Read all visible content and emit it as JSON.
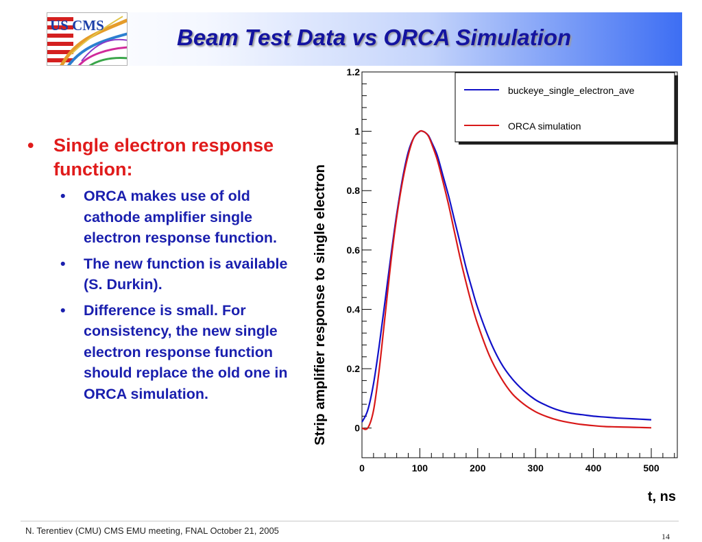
{
  "slide": {
    "title": "Beam Test Data vs ORCA Simulation",
    "logo_text": "US CMS",
    "main_bullet": "Single electron response function:",
    "sub_bullets": [
      "ORCA makes use of old cathode amplifier single electron response function.",
      "The new function is available (S. Durkin).",
      "Difference is small. For consistency, the new single electron response function should replace the old one in ORCA simulation."
    ],
    "bullet_char": "•",
    "footer": "N. Terentiev  (CMU)  CMS EMU meeting,  FNAL  October 21, 2005",
    "page_number": "14"
  },
  "chart_data": {
    "type": "line",
    "title": "",
    "xlabel": "t, ns",
    "ylabel": "Strip amplifier response to single electron",
    "xlim": [
      0,
      545
    ],
    "ylim": [
      -0.1,
      1.2
    ],
    "x_ticks": [
      "0",
      "100",
      "200",
      "300",
      "400",
      "500"
    ],
    "y_ticks": [
      "0",
      "0.2",
      "0.4",
      "0.6",
      "0.8",
      "1",
      "1.2"
    ],
    "legend_position": "top-right",
    "series": [
      {
        "name": "buckeye_single_electron_ave",
        "color": "#1010c8",
        "x": [
          0,
          10,
          20,
          30,
          40,
          50,
          60,
          70,
          80,
          90,
          100,
          105,
          110,
          115,
          120,
          130,
          140,
          150,
          160,
          170,
          180,
          190,
          200,
          220,
          240,
          260,
          280,
          300,
          320,
          340,
          360,
          380,
          400,
          420,
          440,
          460,
          480,
          500
        ],
        "y": [
          0.02,
          0.06,
          0.15,
          0.28,
          0.43,
          0.58,
          0.72,
          0.84,
          0.93,
          0.98,
          1.0,
          1.0,
          0.995,
          0.985,
          0.965,
          0.92,
          0.85,
          0.78,
          0.7,
          0.62,
          0.54,
          0.47,
          0.405,
          0.3,
          0.22,
          0.165,
          0.125,
          0.095,
          0.075,
          0.06,
          0.05,
          0.045,
          0.04,
          0.037,
          0.034,
          0.032,
          0.03,
          0.028
        ]
      },
      {
        "name": "ORCA simulation",
        "color": "#d81818",
        "x": [
          0,
          10,
          20,
          30,
          40,
          50,
          60,
          70,
          80,
          90,
          100,
          105,
          110,
          115,
          120,
          130,
          140,
          150,
          160,
          170,
          180,
          190,
          200,
          220,
          240,
          260,
          280,
          300,
          320,
          340,
          360,
          380,
          400,
          420,
          440,
          460,
          480,
          500
        ],
        "y": [
          0.0,
          0.0,
          0.06,
          0.2,
          0.38,
          0.56,
          0.71,
          0.83,
          0.92,
          0.98,
          1.0,
          1.0,
          0.995,
          0.983,
          0.96,
          0.905,
          0.83,
          0.75,
          0.66,
          0.57,
          0.49,
          0.415,
          0.35,
          0.245,
          0.17,
          0.115,
          0.08,
          0.055,
          0.038,
          0.026,
          0.018,
          0.012,
          0.008,
          0.005,
          0.004,
          0.003,
          0.002,
          0.001
        ]
      }
    ]
  }
}
